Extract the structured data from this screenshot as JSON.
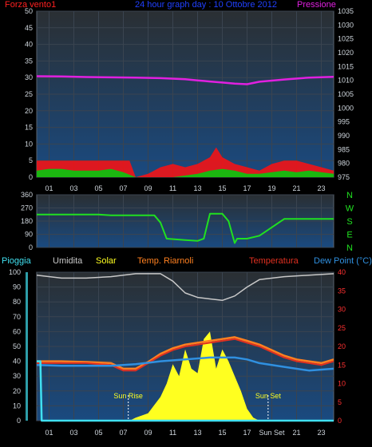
{
  "colors": {
    "bg": "#000000",
    "plot_top": "#2a2f33",
    "plot_bottom": "#1a4a80",
    "grid": "#3a4450",
    "axis_text": "#cfd6dd",
    "wind_label": "#ff2020",
    "title": "#2040ff",
    "pressure": "#e020e0",
    "wind_gust": "#ff1010",
    "wind_avg": "#10c010",
    "wind_low": "#ffffff",
    "direction": "#20e020",
    "rain": "#40e0f0",
    "humidity": "#c8c8c8",
    "solar": "#ffff20",
    "temp_biz": "#ff8020",
    "temperature": "#e03020",
    "dewpoint": "#3090e0",
    "rh_axis": "#ff3030",
    "sun_label": "#ffff20"
  },
  "top": {
    "title": "24 hour graph day : 10 Ottobre 2012",
    "left_label": "Forza vento1",
    "right_label": "Pressione"
  },
  "bottom": {
    "rain_label": "Pioggia",
    "humidity_label": "Umidita",
    "solar_label": "Solar",
    "temp_biz_label": "Temp. Riarnoli",
    "temperature_label": "Temperatura",
    "dewpoint_label": "Dew Point (°C)",
    "sun_rise": "Sun Rise",
    "sun_set": "Sun Set",
    "sun_set_tick": "Sun Set"
  },
  "chart_data": [
    {
      "type": "line",
      "name": "wind_pressure",
      "x_ticks": [
        "01",
        "03",
        "05",
        "07",
        "09",
        "11",
        "13",
        "15",
        "17",
        "19",
        "21",
        "23"
      ],
      "y_left_ticks": [
        "0",
        "5",
        "10",
        "15",
        "20",
        "25",
        "30",
        "35",
        "40",
        "45",
        "50"
      ],
      "y_right_ticks": [
        "975",
        "980",
        "985",
        "990",
        "995",
        "1000",
        "1005",
        "1010",
        "1015",
        "1020",
        "1025",
        "1030",
        "1035"
      ],
      "ylim_left": [
        0,
        50
      ],
      "ylim_right": [
        975,
        1035
      ],
      "pressure": {
        "x": [
          0,
          2,
          4,
          6,
          8,
          10,
          12,
          13,
          14,
          15,
          16,
          17,
          18,
          20,
          22,
          24
        ],
        "y": [
          1011.5,
          1011.4,
          1011.2,
          1011.1,
          1011.0,
          1010.8,
          1010.4,
          1010.0,
          1009.6,
          1009.2,
          1008.8,
          1008.6,
          1009.5,
          1010.3,
          1011.0,
          1011.3
        ]
      },
      "wind_gust": {
        "x": [
          0,
          1,
          2,
          3,
          4,
          5,
          6,
          7,
          7.5,
          8,
          9,
          10,
          11,
          12,
          13,
          14,
          14.5,
          15,
          16,
          17,
          18,
          19,
          20,
          21,
          22,
          23,
          24
        ],
        "y": [
          5,
          5,
          5,
          5,
          5,
          5,
          5,
          5,
          5,
          0,
          1,
          3,
          4,
          3,
          4,
          6,
          9,
          6,
          4,
          3,
          2,
          4,
          5,
          5,
          4,
          3,
          2
        ]
      },
      "wind_avg": {
        "x": [
          0,
          1,
          2,
          3,
          4,
          5,
          6,
          7,
          8,
          9,
          10,
          11,
          12,
          13,
          14,
          15,
          16,
          17,
          18,
          19,
          20,
          21,
          22,
          23,
          24
        ],
        "y": [
          2,
          2.5,
          2.5,
          2,
          2,
          2,
          2.5,
          1.5,
          0,
          0,
          0,
          0,
          0.5,
          1,
          2,
          2.5,
          2,
          1,
          1,
          1.5,
          2,
          1.5,
          2,
          1.5,
          1
        ]
      }
    },
    {
      "type": "line",
      "name": "wind_direction",
      "y_ticks": [
        "360",
        "270",
        "180",
        "90",
        "0"
      ],
      "y_right_labels": [
        "N",
        "W",
        "S",
        "E",
        "N"
      ],
      "ylim": [
        0,
        360
      ],
      "x": [
        0,
        3,
        5,
        6,
        9.5,
        10,
        10.5,
        12,
        13,
        13.5,
        14,
        15,
        15.5,
        16,
        16.2,
        17,
        18,
        20,
        24
      ],
      "y": [
        225,
        225,
        225,
        220,
        220,
        170,
        60,
        50,
        45,
        60,
        230,
        230,
        180,
        30,
        60,
        60,
        80,
        195,
        195
      ]
    },
    {
      "type": "line",
      "name": "temperature_solar",
      "x_ticks": [
        "01",
        "03",
        "05",
        "07",
        "09",
        "11",
        "13",
        "15",
        "17",
        "Sun Set",
        "21",
        "23"
      ],
      "y_left_ticks": [
        "0",
        "10",
        "20",
        "30",
        "40",
        "50",
        "60",
        "70",
        "80",
        "90",
        "100"
      ],
      "y_right_ticks": [
        "0",
        "5",
        "10",
        "15",
        "20",
        "25",
        "30",
        "35",
        "40"
      ],
      "ylim_left": [
        0,
        100
      ],
      "ylim_right": [
        0,
        40
      ],
      "humidity": {
        "x": [
          0,
          2,
          4,
          6,
          8,
          10,
          11,
          12,
          13,
          14,
          15,
          16,
          17,
          18,
          20,
          22,
          24
        ],
        "y": [
          98,
          96,
          96,
          97,
          99,
          99,
          94,
          86,
          83,
          82,
          81,
          84,
          90,
          95,
          97,
          98,
          99
        ]
      },
      "temperature": {
        "x": [
          0,
          2,
          4,
          6,
          7,
          8,
          9,
          10,
          11,
          12,
          13,
          14,
          15,
          16,
          17,
          18,
          19,
          20,
          21,
          22,
          23,
          24
        ],
        "y": [
          15.5,
          15.5,
          15.5,
          15.0,
          13.5,
          13.5,
          15.5,
          17.5,
          19.0,
          20.0,
          20.5,
          21.0,
          21.5,
          22.0,
          21.0,
          20.0,
          18.5,
          17.0,
          16.0,
          15.5,
          15.0,
          16.0
        ]
      },
      "dewpoint": {
        "x": [
          0,
          2,
          4,
          6,
          8,
          10,
          12,
          14,
          16,
          17,
          18,
          20,
          22,
          24
        ],
        "y": [
          15.0,
          14.8,
          14.8,
          14.8,
          15.2,
          16.0,
          16.5,
          17.0,
          17.0,
          16.5,
          15.5,
          14.5,
          13.5,
          14.0
        ]
      },
      "temp_biz": {
        "x": [
          0,
          2,
          4,
          6,
          7,
          8,
          9,
          10,
          11,
          12,
          13,
          14,
          15,
          16,
          17,
          18,
          19,
          20,
          21,
          22,
          23,
          24
        ],
        "y": [
          16.0,
          16.0,
          15.8,
          15.5,
          14.0,
          14.0,
          15.8,
          18.0,
          19.5,
          20.5,
          21.0,
          21.5,
          22.0,
          22.5,
          21.5,
          20.5,
          19.0,
          17.5,
          16.5,
          16.0,
          15.5,
          16.5
        ]
      },
      "solar": {
        "x": [
          7.5,
          8,
          9,
          10,
          10.5,
          11,
          11.5,
          12,
          12.5,
          13,
          13.5,
          14,
          14.5,
          15,
          15.5,
          16,
          16.5,
          17,
          17.5,
          18
        ],
        "y": [
          0,
          2,
          5,
          16,
          25,
          38,
          30,
          48,
          35,
          32,
          55,
          60,
          35,
          48,
          40,
          30,
          20,
          8,
          2,
          0
        ]
      },
      "rain": {
        "x": [
          0,
          0.3,
          0.4,
          24
        ],
        "y": [
          40,
          40,
          0,
          0
        ]
      },
      "sun_rise_hour": 7.4,
      "sun_set_hour": 18.7
    }
  ]
}
